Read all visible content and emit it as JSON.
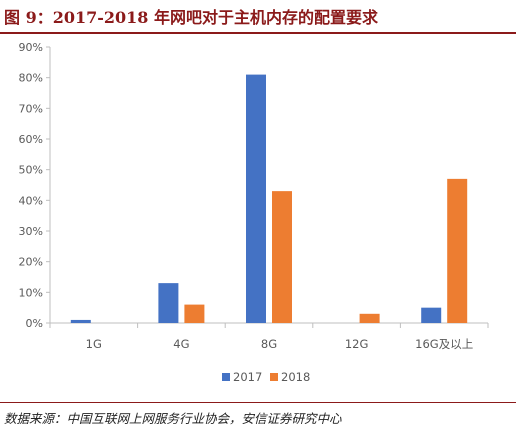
{
  "header": {
    "title": "图 9：2017-2018 年网吧对于主机内存的配置要求"
  },
  "footer": {
    "source": "数据来源：中国互联网上网服务行业协会，安信证券研究中心"
  },
  "chart_data": {
    "type": "bar",
    "categories": [
      "1G",
      "4G",
      "8G",
      "12G",
      "16G及以上"
    ],
    "series": [
      {
        "name": "2017",
        "color": "#4472C4",
        "values": [
          1,
          13,
          81,
          0,
          5
        ]
      },
      {
        "name": "2018",
        "color": "#ED7D31",
        "values": [
          0,
          6,
          43,
          3,
          47
        ]
      }
    ],
    "ylim": [
      0,
      90
    ],
    "yticks": [
      0,
      10,
      20,
      30,
      40,
      50,
      60,
      70,
      80,
      90
    ],
    "ytick_labels": [
      "0%",
      "10%",
      "20%",
      "30%",
      "40%",
      "50%",
      "60%",
      "70%",
      "80%",
      "90%"
    ],
    "legend_position": "bottom",
    "grid": false,
    "title": "",
    "xlabel": "",
    "ylabel": ""
  }
}
